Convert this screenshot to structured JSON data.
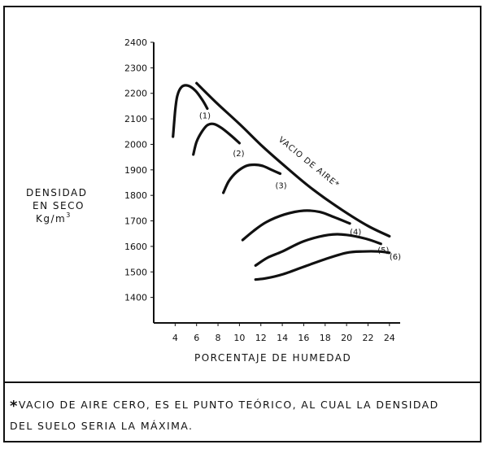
{
  "chart_data": {
    "type": "line",
    "ylabel_lines": [
      "DENSIDAD",
      "EN SECO",
      "Kg/m"
    ],
    "ylabel_sup": "3",
    "xlabel": "PORCENTAJE DE HUMEDAD",
    "xlim": [
      2,
      25
    ],
    "ylim": [
      1300,
      2400
    ],
    "x_ticks": [
      4,
      6,
      8,
      10,
      12,
      14,
      16,
      18,
      20,
      22,
      24
    ],
    "y_ticks": [
      1400,
      1500,
      1600,
      1700,
      1800,
      1900,
      2000,
      2100,
      2200,
      2300,
      2400
    ],
    "grid": false,
    "series": [
      {
        "name": "(1)",
        "x": [
          3.8,
          4.0,
          4.2,
          4.6,
          5.2,
          5.9,
          6.6,
          7.0
        ],
        "y": [
          2030,
          2130,
          2190,
          2225,
          2230,
          2210,
          2170,
          2140
        ]
      },
      {
        "name": "(2)",
        "x": [
          5.7,
          6.0,
          6.5,
          7.0,
          7.6,
          8.3,
          9.2,
          10.0
        ],
        "y": [
          1960,
          2010,
          2050,
          2075,
          2080,
          2065,
          2035,
          2005
        ]
      },
      {
        "name": "(3)",
        "x": [
          8.5,
          9.0,
          9.7,
          10.6,
          11.4,
          12.2,
          13.0,
          13.8
        ],
        "y": [
          1810,
          1855,
          1890,
          1915,
          1920,
          1915,
          1900,
          1885
        ]
      },
      {
        "name": "(4)",
        "x": [
          10.3,
          11.3,
          12.5,
          14.2,
          16.0,
          17.5,
          18.8,
          20.3
        ],
        "y": [
          1625,
          1660,
          1695,
          1725,
          1740,
          1735,
          1715,
          1690
        ]
      },
      {
        "name": "(5)",
        "x": [
          11.5,
          12.6,
          14.0,
          16.0,
          18.3,
          20.0,
          21.8,
          23.2
        ],
        "y": [
          1525,
          1555,
          1580,
          1620,
          1645,
          1645,
          1630,
          1610
        ]
      },
      {
        "name": "(6)",
        "x": [
          11.5,
          12.5,
          14.0,
          16.0,
          18.0,
          20.0,
          21.5,
          23.0,
          24.0
        ],
        "y": [
          1470,
          1475,
          1490,
          1520,
          1550,
          1575,
          1580,
          1580,
          1575
        ]
      },
      {
        "name": "VACIO DE AIRE*",
        "x": [
          6.0,
          7.8,
          10.0,
          12.2,
          14.5,
          16.8,
          19.5,
          22.0,
          24.0
        ],
        "y": [
          2240,
          2165,
          2080,
          1990,
          1905,
          1825,
          1745,
          1680,
          1640
        ]
      }
    ],
    "annotations": [
      "(1)",
      "(2)",
      "(3)",
      "(4)",
      "(5)",
      "(6)",
      "VACIO DE AIRE*"
    ]
  },
  "footnote": {
    "mark": "*",
    "lines": [
      "VACIO DE AIRE  CERO, ES EL PUNTO TEÓRICO, AL CUAL  LA  DENSIDAD",
      "DEL  SUELO  SERIA  LA  MÁXIMA."
    ]
  }
}
